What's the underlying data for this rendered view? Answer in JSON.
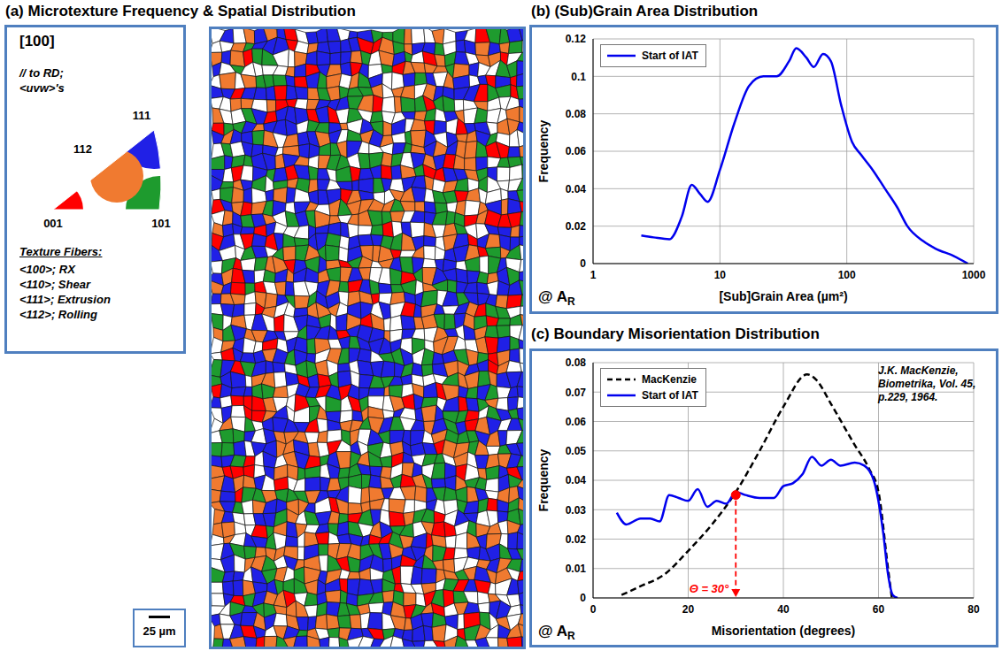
{
  "panel_a": {
    "title": "(a) Microtexture Frequency & Spatial Distribution",
    "ipf_direction": "[100]",
    "ipf_caption": [
      "// to RD;",
      "<uvw>'s"
    ],
    "ipf_corners": [
      "001",
      "101",
      "111",
      "112"
    ],
    "fibers_title": "Texture Fibers:",
    "fibers": [
      {
        "label": "<100>; RX",
        "color": "#ff0000"
      },
      {
        "label": "<110>; Shear",
        "color": "#1e9b2e"
      },
      {
        "label": "<111>; Extrusion",
        "color": "#2020e6"
      },
      {
        "label": "<112>; Rolling",
        "color": "#f07a30"
      }
    ],
    "scale_bar": "25 µm"
  },
  "chart_data": [
    {
      "type": "line",
      "title": "(b) (Sub)Grain Area Distribution",
      "x_label": "[Sub]Grain Area (µm²)",
      "y_label": "Frequency",
      "log": "x",
      "grid": true,
      "legend": "upper left",
      "xlim": [
        1,
        1000
      ],
      "xticks": [
        1,
        10,
        100,
        1000
      ],
      "ylim": [
        0,
        0.12
      ],
      "yticks": [
        0,
        0.02,
        0.04,
        0.06,
        0.08,
        0.1,
        0.12
      ],
      "corner_label": {
        "text": "@ A",
        "subscript": "R"
      },
      "series": [
        {
          "name": "Start of IAT",
          "color": "#0000ee",
          "line_style": "solid",
          "x": [
            2.4,
            3,
            4,
            5,
            6,
            7,
            8,
            10,
            13,
            17,
            22,
            28,
            35,
            40,
            48,
            55,
            65,
            75,
            90,
            110,
            130,
            160,
            200,
            250,
            300,
            400,
            500,
            700,
            900
          ],
          "values": [
            0.015,
            0.014,
            0.013,
            0.025,
            0.042,
            0.037,
            0.033,
            0.05,
            0.075,
            0.095,
            0.1,
            0.1,
            0.108,
            0.115,
            0.11,
            0.105,
            0.112,
            0.108,
            0.085,
            0.065,
            0.058,
            0.05,
            0.04,
            0.03,
            0.02,
            0.012,
            0.008,
            0.004,
            0
          ]
        }
      ]
    },
    {
      "type": "line",
      "title": "(c) Boundary Misorientation Distribution",
      "x_label": "Misorientation  (degrees)",
      "y_label": "Frequency",
      "grid": true,
      "legend": "upper left",
      "xlim": [
        0,
        80
      ],
      "xticks": [
        0,
        20,
        40,
        60,
        80
      ],
      "ylim": [
        0,
        0.08
      ],
      "yticks": [
        0,
        0.01,
        0.02,
        0.03,
        0.04,
        0.05,
        0.06,
        0.07,
        0.08
      ],
      "corner_label": {
        "text": "@ A",
        "subscript": "R"
      },
      "citation": "J.K. MacKenzie, Biometrika, Vol. 45, p.229, 1964.",
      "annotations": [
        {
          "text": "Θ = 30°",
          "x": 30,
          "y": 0.035,
          "color": "#ff0000"
        }
      ],
      "series": [
        {
          "name": "MacKenzie",
          "color": "#000000",
          "line_style": "dashed",
          "x": [
            6,
            10,
            15,
            20,
            25,
            30,
            35,
            40,
            45,
            47,
            50,
            55,
            58,
            60,
            62,
            62.8
          ],
          "values": [
            0.001,
            0.004,
            0.008,
            0.016,
            0.025,
            0.036,
            0.05,
            0.065,
            0.076,
            0.074,
            0.066,
            0.052,
            0.044,
            0.036,
            0.01,
            0
          ]
        },
        {
          "name": "Start of IAT",
          "color": "#0000ee",
          "line_style": "solid",
          "x": [
            5,
            7,
            10,
            12,
            14,
            16,
            18,
            20,
            22,
            24,
            26,
            28,
            30,
            32,
            35,
            38,
            40,
            42,
            44,
            46,
            48,
            50,
            52,
            55,
            57,
            59,
            61,
            62,
            63,
            64
          ],
          "values": [
            0.029,
            0.025,
            0.027,
            0.027,
            0.026,
            0.035,
            0.034,
            0.033,
            0.037,
            0.031,
            0.033,
            0.032,
            0.036,
            0.035,
            0.034,
            0.034,
            0.038,
            0.039,
            0.042,
            0.048,
            0.045,
            0.047,
            0.045,
            0.046,
            0.045,
            0.04,
            0.022,
            0.008,
            0.001,
            0
          ]
        }
      ]
    }
  ]
}
